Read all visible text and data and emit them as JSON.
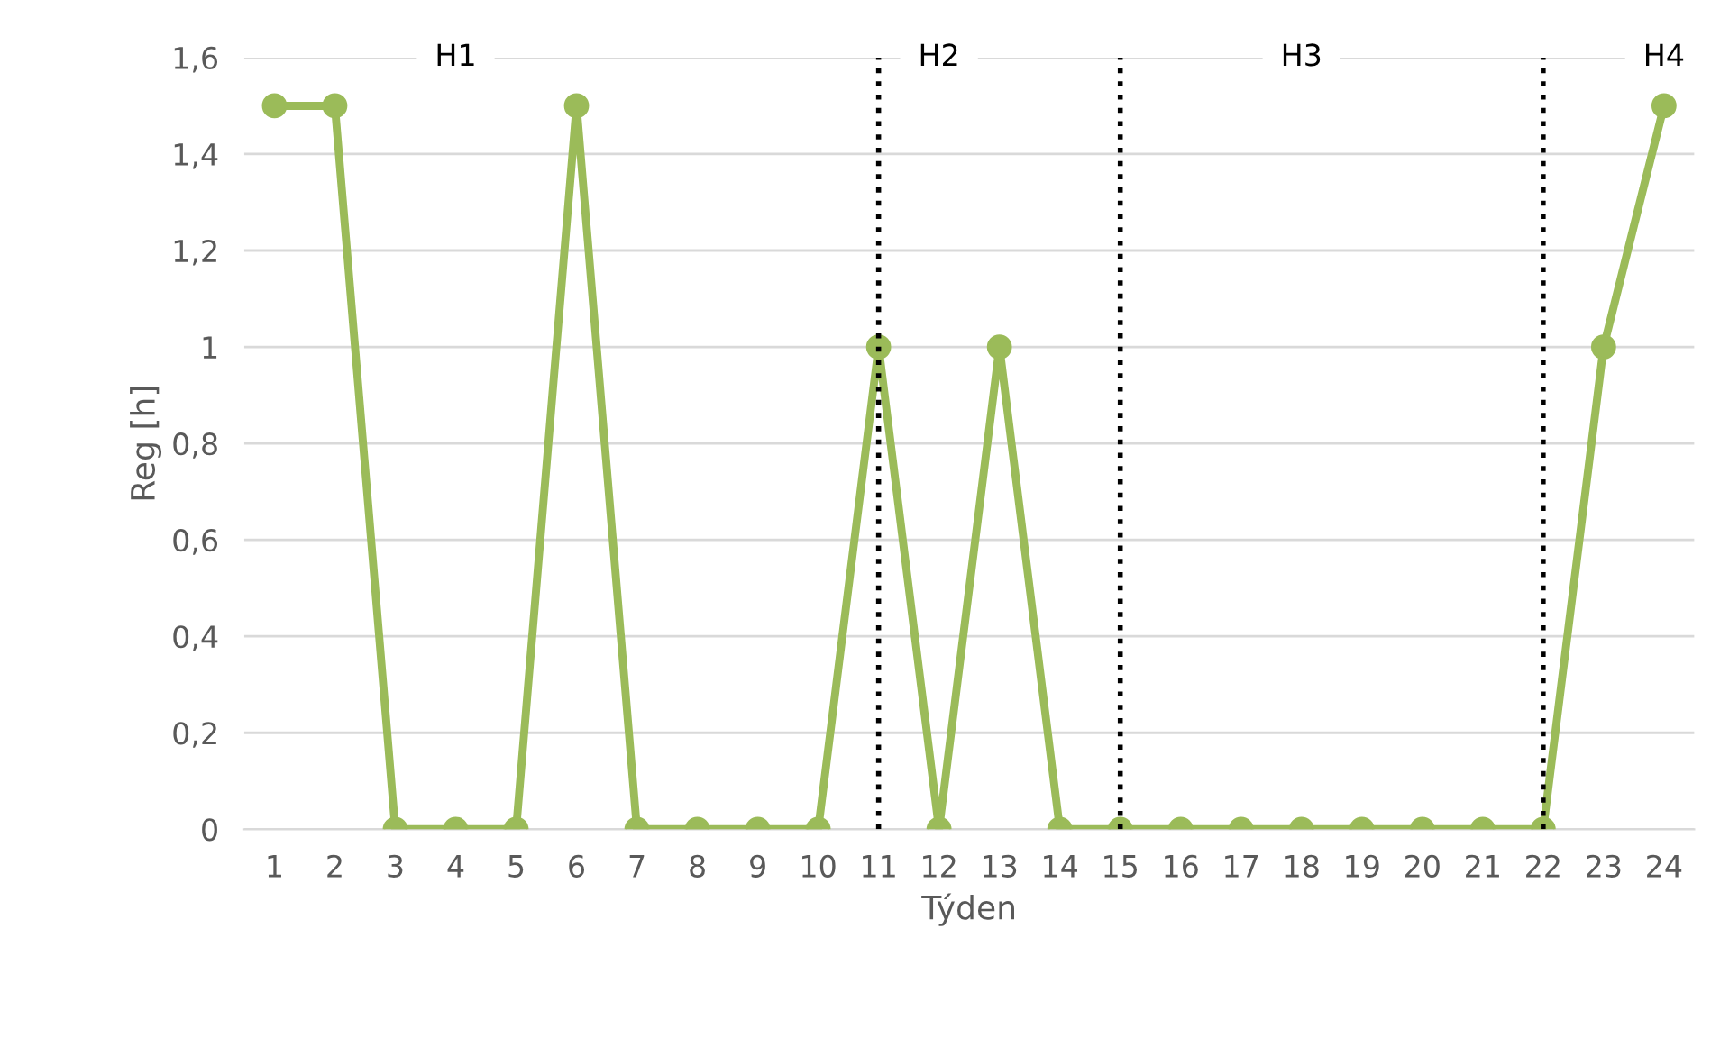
{
  "chart_data": {
    "type": "line",
    "xlabel": "Týden",
    "ylabel": "Reg [h]",
    "categories": [
      "1",
      "2",
      "3",
      "4",
      "5",
      "6",
      "7",
      "8",
      "9",
      "10",
      "11",
      "12",
      "13",
      "14",
      "15",
      "16",
      "17",
      "18",
      "19",
      "20",
      "21",
      "22",
      "23",
      "24"
    ],
    "series": [
      {
        "color": "#9bbb59",
        "values": [
          1.5,
          1.5,
          0,
          0,
          0,
          1.5,
          0,
          0,
          0,
          0,
          1,
          0,
          1,
          0,
          0,
          0,
          0,
          0,
          0,
          0,
          0,
          0,
          1,
          1.5
        ]
      }
    ],
    "ylim": [
      0,
      1.6
    ],
    "yticks": [
      0,
      {
        "value": 0.2,
        "label": "0,2"
      },
      {
        "value": 0.4,
        "label": "0,4"
      },
      {
        "value": 0.6,
        "label": "0,6"
      },
      {
        "value": 0.8,
        "label": "0,8"
      },
      1,
      {
        "value": 1.2,
        "label": "1,2"
      },
      {
        "value": 1.4,
        "label": "1,4"
      },
      {
        "value": 1.6,
        "label": "1,6"
      }
    ],
    "grid": "y",
    "marker": "circle",
    "line_style": "solid",
    "legend": false,
    "ref_lines": [
      {
        "axis": "x",
        "value": "11",
        "color": "#000000",
        "line_style": "dotted"
      },
      {
        "axis": "x",
        "value": "15",
        "color": "#000000",
        "line_style": "dotted"
      },
      {
        "axis": "x",
        "value": "22",
        "color": "#000000",
        "line_style": "dotted"
      }
    ],
    "annotations": [
      {
        "text": "H1",
        "x": "4",
        "y": 1.6
      },
      {
        "text": "H2",
        "x": "12",
        "y": 1.6
      },
      {
        "text": "H3",
        "x": "18",
        "y": 1.6
      },
      {
        "text": "H4",
        "x": "24",
        "y": 1.6
      }
    ]
  }
}
